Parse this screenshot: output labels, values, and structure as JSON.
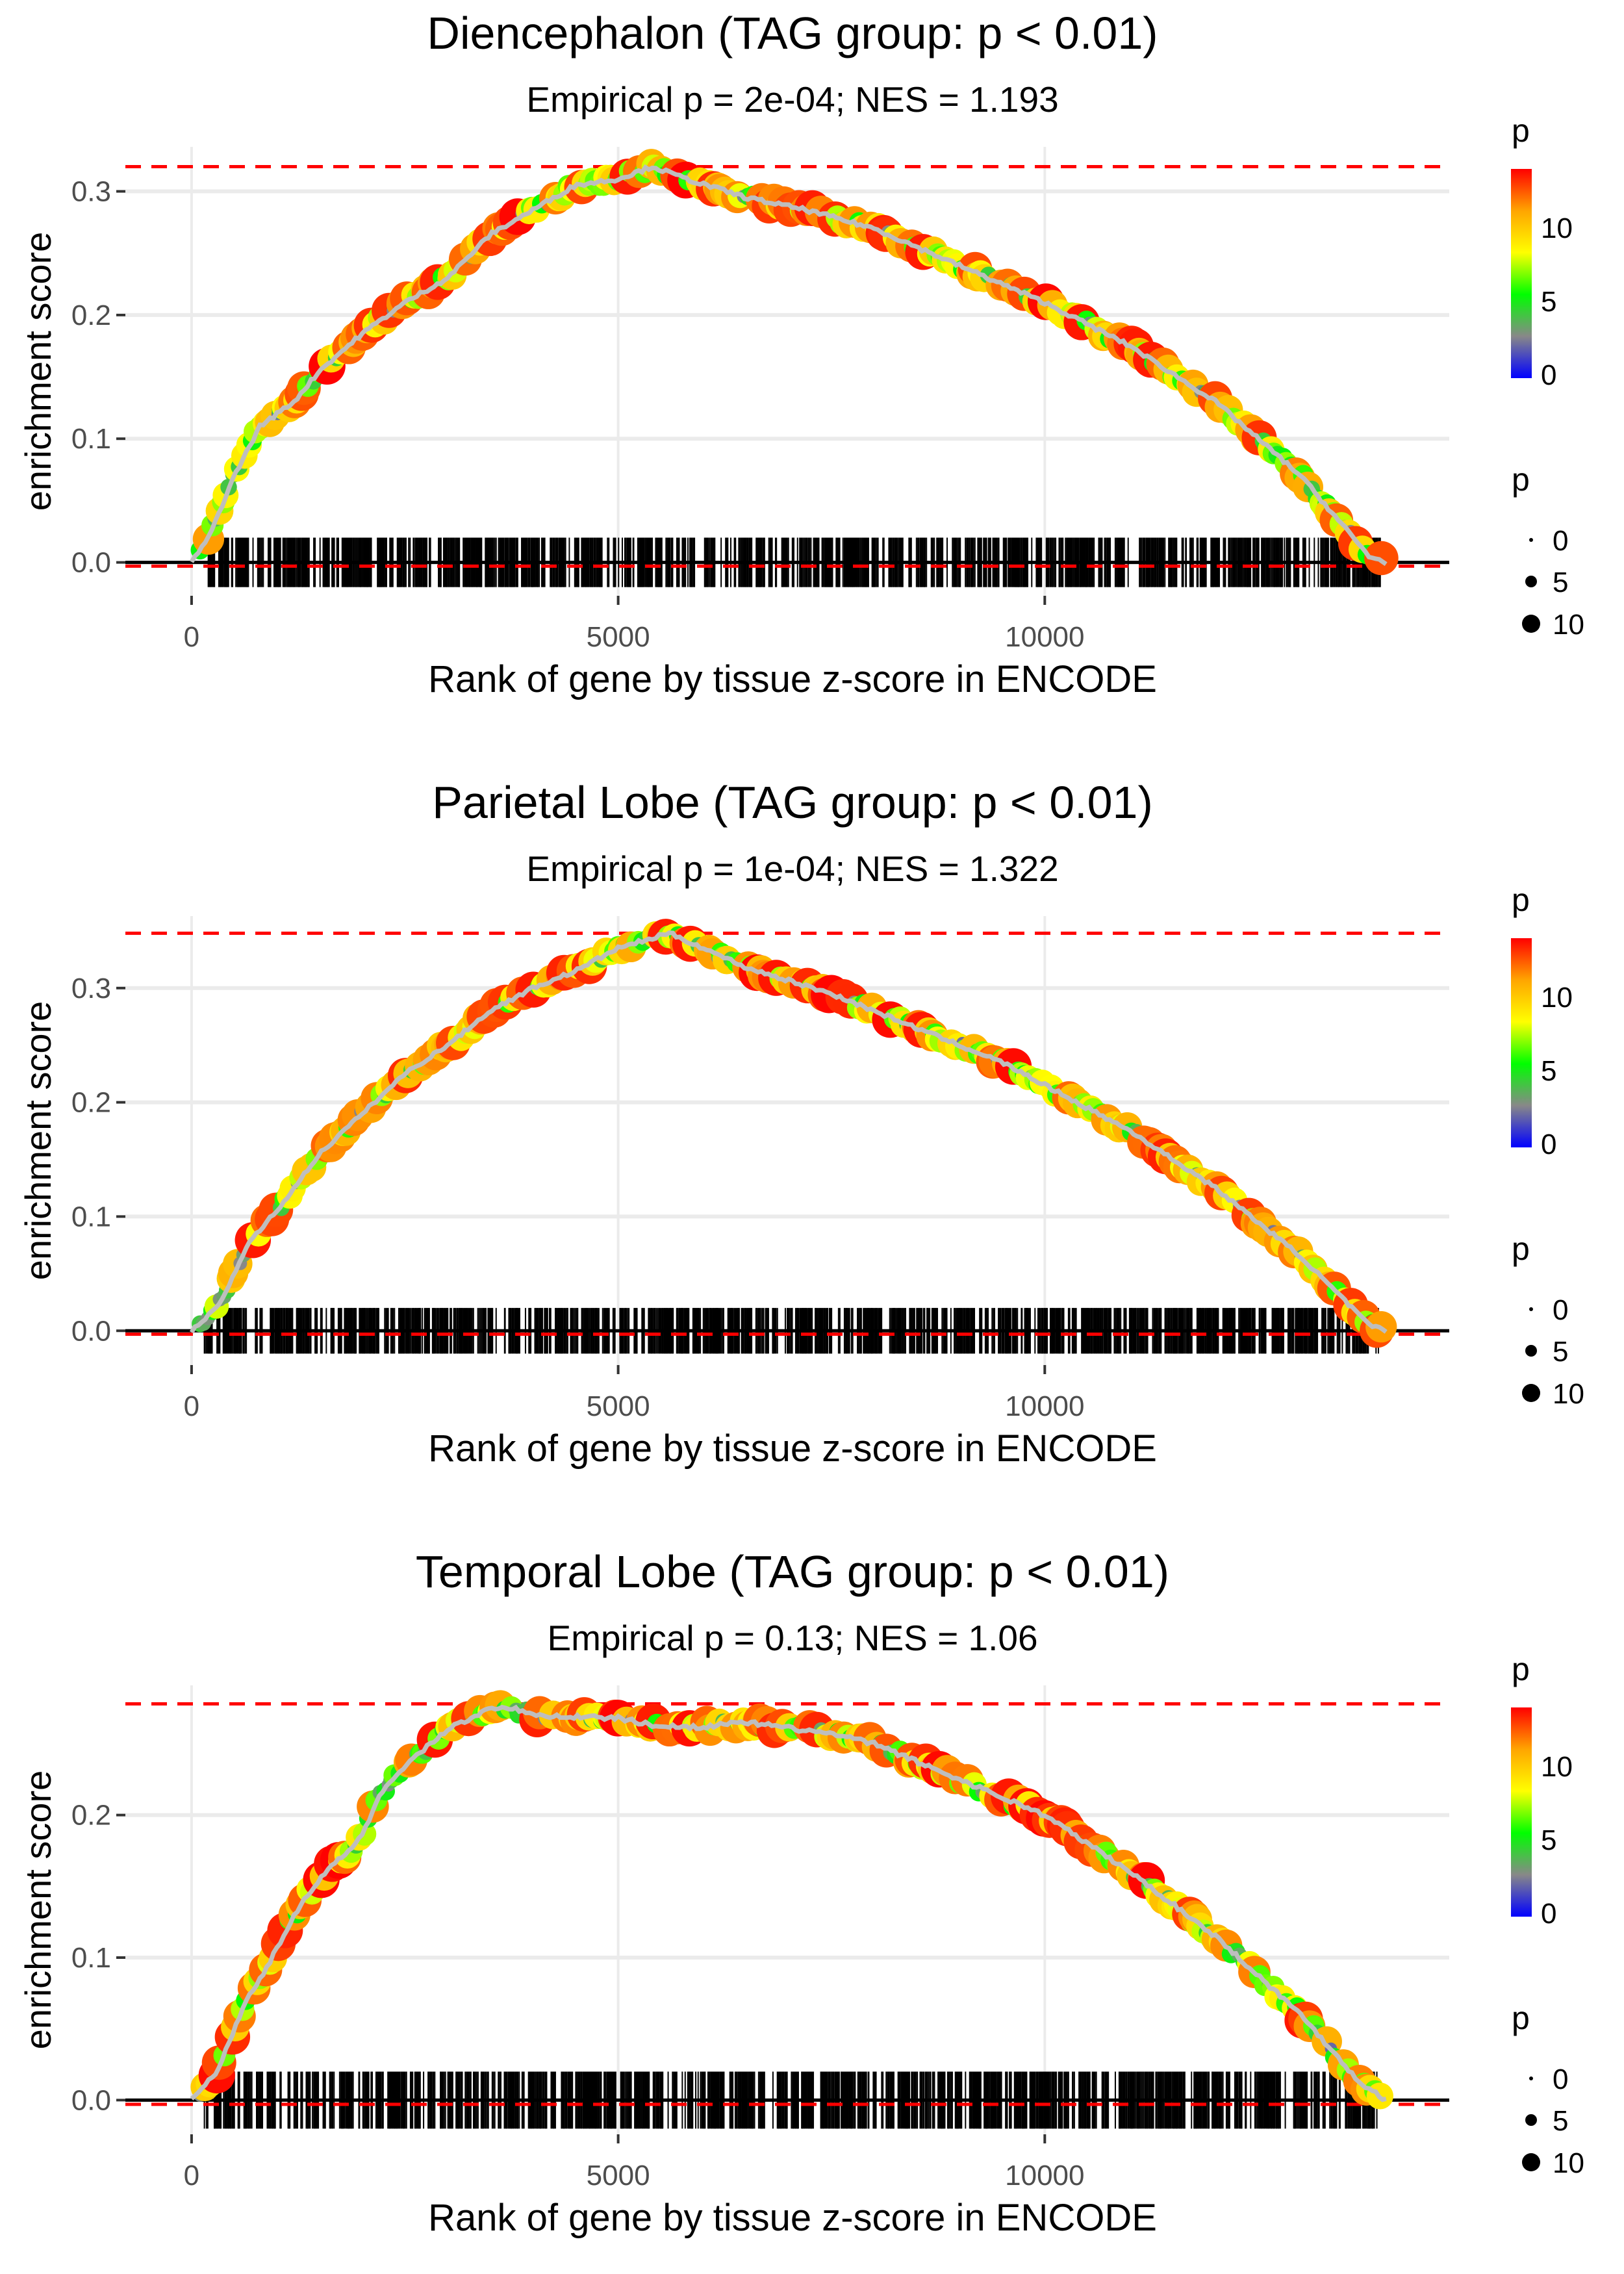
{
  "chart_data": [
    {
      "type": "line",
      "title": "Diencephalon (TAG group: p < 0.01)",
      "subtitle": "Empirical p = 2e-04; NES = 1.193",
      "xlabel": "Rank of gene by tissue z-score in ENCODE",
      "ylabel": "enrichment score",
      "xticks": [
        0,
        5000,
        10000
      ],
      "xtick_labels": [
        "0",
        "5000",
        "10000"
      ],
      "yticks": [
        0.0,
        0.1,
        0.2,
        0.3
      ],
      "ytick_labels": [
        "0.0",
        "0.1",
        "0.2",
        "0.3"
      ],
      "xlim": [
        -776,
        14741
      ],
      "ylim": [
        -0.027,
        0.336
      ],
      "max_es": 0.32,
      "min_es": -0.003,
      "x": [
        0,
        200,
        500,
        800,
        1200,
        1500,
        2000,
        2500,
        3000,
        3500,
        4000,
        4500,
        5000,
        5400,
        5800,
        6500,
        7200,
        8000,
        9000,
        10000,
        11000,
        12000,
        13000,
        13800,
        14000
      ],
      "y": [
        0,
        0.02,
        0.07,
        0.11,
        0.13,
        0.155,
        0.185,
        0.21,
        0.23,
        0.265,
        0.285,
        0.305,
        0.31,
        0.32,
        0.31,
        0.295,
        0.285,
        0.27,
        0.24,
        0.21,
        0.175,
        0.13,
        0.07,
        0.005,
        0
      ],
      "grid": true
    },
    {
      "type": "line",
      "title": "Parietal Lobe (TAG group: p < 0.01)",
      "subtitle": "Empirical p = 1e-04; NES = 1.322",
      "xlabel": "Rank of gene by tissue z-score in ENCODE",
      "ylabel": "enrichment score",
      "xticks": [
        0,
        5000,
        10000
      ],
      "xtick_labels": [
        "0",
        "5000",
        "10000"
      ],
      "yticks": [
        0.0,
        0.1,
        0.2,
        0.3
      ],
      "ytick_labels": [
        "0.0",
        "0.1",
        "0.2",
        "0.3"
      ],
      "xlim": [
        -776,
        14741
      ],
      "ylim": [
        -0.03,
        0.363
      ],
      "max_es": 0.348,
      "min_es": -0.003,
      "x": [
        0,
        300,
        700,
        1000,
        1500,
        2000,
        2500,
        3000,
        3500,
        4000,
        4500,
        5000,
        5600,
        6000,
        6500,
        7500,
        8500,
        9500,
        10000,
        11000,
        12000,
        13000,
        13800,
        14000
      ],
      "y": [
        0,
        0.02,
        0.08,
        0.105,
        0.155,
        0.19,
        0.225,
        0.25,
        0.28,
        0.3,
        0.315,
        0.335,
        0.348,
        0.335,
        0.318,
        0.295,
        0.265,
        0.235,
        0.215,
        0.175,
        0.125,
        0.065,
        0.005,
        0
      ],
      "grid": true
    },
    {
      "type": "line",
      "title": "Temporal Lobe (TAG group: p < 0.01)",
      "subtitle": "Empirical p = 0.13; NES = 1.06",
      "xlabel": "Rank of gene by tissue z-score in ENCODE",
      "ylabel": "enrichment score",
      "xticks": [
        0,
        5000,
        10000
      ],
      "xtick_labels": [
        "0",
        "5000",
        "10000"
      ],
      "yticks": [
        0.0,
        0.1,
        0.2
      ],
      "ytick_labels": [
        "0.0",
        "0.1",
        "0.2"
      ],
      "xlim": [
        -776,
        14741
      ],
      "ylim": [
        -0.024,
        0.291
      ],
      "max_es": 0.278,
      "min_es": -0.003,
      "x": [
        0,
        300,
        600,
        900,
        1200,
        1500,
        2000,
        2200,
        2600,
        3000,
        3500,
        3700,
        4000,
        5000,
        5500,
        6000,
        6500,
        7500,
        8000,
        9000,
        10000,
        11000,
        12000,
        13000,
        13700,
        14000
      ],
      "y": [
        0,
        0.02,
        0.065,
        0.095,
        0.13,
        0.155,
        0.185,
        0.215,
        0.24,
        0.26,
        0.275,
        0.276,
        0.27,
        0.268,
        0.262,
        0.262,
        0.265,
        0.257,
        0.25,
        0.225,
        0.2,
        0.16,
        0.115,
        0.06,
        0.012,
        0
      ],
      "grid": true
    }
  ],
  "legend": {
    "color_title": "p",
    "color_ticks": [
      "10",
      "5",
      "0"
    ],
    "color_range": [
      0,
      14
    ],
    "colors": [
      "#0000ff",
      "#888888",
      "#00ff00",
      "#ffff00",
      "#ffa500",
      "#ff0000"
    ],
    "size_title": "p",
    "size_labels": [
      "0",
      "5",
      "10"
    ]
  }
}
